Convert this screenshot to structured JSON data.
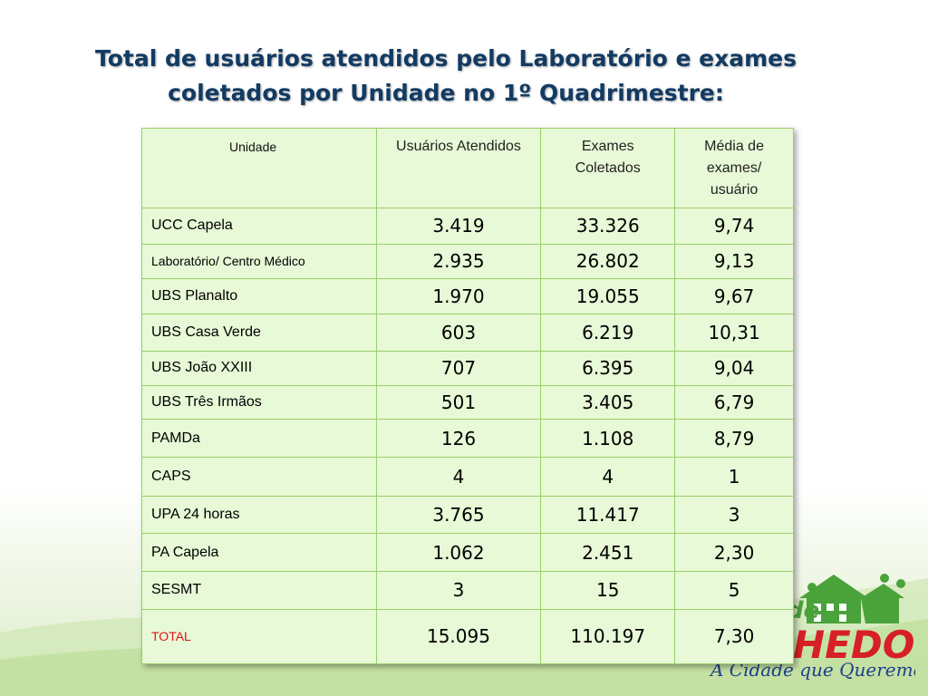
{
  "title": {
    "line1": "Total de usuários atendidos pelo Laboratório e exames",
    "line2": "coletados por Unidade no 1º Quadrimestre:"
  },
  "table": {
    "headers": {
      "unidade": "Unidade",
      "usuarios": "Usuários Atendidos",
      "exames": "Exames Coletados",
      "media": "Média de exames/ usuário"
    },
    "rows": [
      {
        "unidade": "UCC Capela",
        "usuarios": "3.419",
        "exames": "33.326",
        "media": "9,74"
      },
      {
        "unidade": "Laboratório/ Centro Médico",
        "usuarios": "2.935",
        "exames": "26.802",
        "media": "9,13"
      },
      {
        "unidade": "UBS Planalto",
        "usuarios": "1.970",
        "exames": "19.055",
        "media": "9,67"
      },
      {
        "unidade": "UBS Casa Verde",
        "usuarios": "603",
        "exames": "6.219",
        "media": "10,31"
      },
      {
        "unidade": "UBS João XXIII",
        "usuarios": "707",
        "exames": "6.395",
        "media": "9,04"
      },
      {
        "unidade": "UBS Três Irmãos",
        "usuarios": "501",
        "exames": "3.405",
        "media": "6,79"
      },
      {
        "unidade": "PAMDa",
        "usuarios": "126",
        "exames": "1.108",
        "media": "8,79"
      },
      {
        "unidade": "CAPS",
        "usuarios": "4",
        "exames": "4",
        "media": "1"
      },
      {
        "unidade": "UPA 24 horas",
        "usuarios": "3.765",
        "exames": "11.417",
        "media": "3"
      },
      {
        "unidade": "PA Capela",
        "usuarios": "1.062",
        "exames": "2.451",
        "media": "2,30"
      },
      {
        "unidade": "SESMT",
        "usuarios": "3",
        "exames": "15",
        "media": "5"
      }
    ],
    "total": {
      "unidade": "TOTAL",
      "usuarios": "15.095",
      "exames": "110.197",
      "media": "7,30"
    }
  },
  "logo": {
    "prefix": "de",
    "name": "HEDO",
    "slogan": "A Cidade que Queremos"
  },
  "colors": {
    "title": "#123b63",
    "table_fill": "#e7f9d6",
    "table_border": "#9bcf6a",
    "total_label": "#e21313",
    "logo_red": "#d71f26",
    "logo_green": "#4aa33a",
    "slogan": "#1f3f8a"
  }
}
